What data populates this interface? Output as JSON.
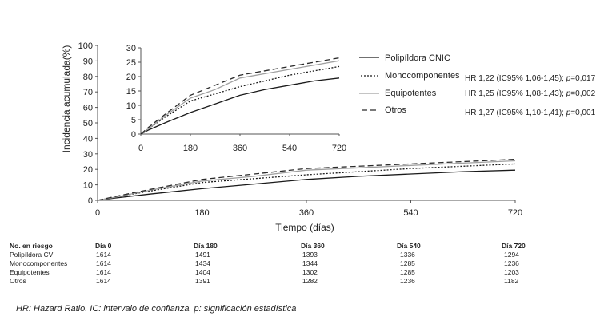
{
  "chart_data": [
    {
      "type": "line",
      "name": "main",
      "xlabel": "Tiempo (días)",
      "ylabel": "Incidencia acumulada(%)",
      "xlim": [
        0,
        720
      ],
      "ylim": [
        0,
        100
      ],
      "xticks": [
        0,
        180,
        360,
        540,
        720
      ],
      "yticks": [
        0,
        10,
        20,
        30,
        40,
        50,
        60,
        70,
        80,
        90,
        100
      ],
      "grid": false,
      "series": [
        {
          "name": "Polipíldora CNIC",
          "style": "solid",
          "color": "#1a1a1a",
          "x": [
            0,
            30,
            90,
            180,
            270,
            360,
            450,
            540,
            630,
            720
          ],
          "y": [
            0,
            1.5,
            4,
            7.5,
            10.5,
            13.5,
            15.5,
            17.0,
            18.5,
            19.5
          ]
        },
        {
          "name": "Monocomponentes",
          "style": "dotted",
          "color": "#1a1a1a",
          "x": [
            0,
            30,
            90,
            180,
            270,
            360,
            450,
            540,
            630,
            720
          ],
          "y": [
            0,
            2,
            6,
            11.5,
            14,
            16.5,
            18.5,
            20.5,
            22,
            23.5
          ]
        },
        {
          "name": "Equipotentes",
          "style": "solid",
          "color": "#a0a0a0",
          "x": [
            0,
            30,
            90,
            180,
            270,
            360,
            450,
            540,
            630,
            720
          ],
          "y": [
            0,
            2,
            6.5,
            12.5,
            15.5,
            19.5,
            21,
            22.5,
            24,
            25.5
          ]
        },
        {
          "name": "Otros",
          "style": "dashed",
          "color": "#2a2a2a",
          "x": [
            0,
            30,
            90,
            180,
            270,
            360,
            450,
            540,
            630,
            720
          ],
          "y": [
            0,
            2.5,
            7,
            13.5,
            17,
            20.5,
            22,
            23.5,
            25,
            26.5
          ]
        }
      ]
    },
    {
      "type": "line",
      "name": "inset",
      "xlim": [
        0,
        720
      ],
      "ylim": [
        0,
        30
      ],
      "xticks": [
        0,
        180,
        360,
        540,
        720
      ],
      "yticks": [
        0,
        5,
        10,
        15,
        20,
        25,
        30
      ],
      "grid": false,
      "legend": "right",
      "series": [
        {
          "name": "Polipíldora CNIC",
          "style": "solid",
          "color": "#1a1a1a",
          "x": [
            0,
            30,
            90,
            180,
            270,
            360,
            450,
            540,
            630,
            720
          ],
          "y": [
            0,
            1.5,
            4,
            7.5,
            10.5,
            13.5,
            15.5,
            17.0,
            18.5,
            19.5
          ]
        },
        {
          "name": "Monocomponentes",
          "style": "dotted",
          "color": "#1a1a1a",
          "x": [
            0,
            30,
            90,
            180,
            270,
            360,
            450,
            540,
            630,
            720
          ],
          "y": [
            0,
            2,
            6,
            11.5,
            14,
            16.5,
            18.5,
            20.5,
            22,
            23.5
          ]
        },
        {
          "name": "Equipotentes",
          "style": "solid",
          "color": "#a0a0a0",
          "x": [
            0,
            30,
            90,
            180,
            270,
            360,
            450,
            540,
            630,
            720
          ],
          "y": [
            0,
            2,
            6.5,
            12.5,
            15.5,
            19.5,
            21,
            22.5,
            24,
            25.5
          ]
        },
        {
          "name": "Otros",
          "style": "dashed",
          "color": "#2a2a2a",
          "x": [
            0,
            30,
            90,
            180,
            270,
            360,
            450,
            540,
            630,
            720
          ],
          "y": [
            0,
            2.5,
            7,
            13.5,
            17,
            20.5,
            22,
            23.5,
            25,
            26.5
          ]
        }
      ]
    }
  ],
  "annotations": {
    "hr": [
      {
        "pre": "HR 1,22 (IC95% 1,06-1,45); ",
        "p": "p",
        "post": "=0,017"
      },
      {
        "pre": "HR 1,25 (IC95% 1,08-1,43); ",
        "p": "p",
        "post": "=0,002"
      },
      {
        "pre": "HR 1,27 (IC95% 1,10-1,41); ",
        "p": "p",
        "post": "=0,001"
      }
    ]
  },
  "risk_table": {
    "headers": [
      "No. en riesgo",
      "Día 0",
      "Día 180",
      "Día 360",
      "Día 540",
      "Día 720"
    ],
    "rows": [
      {
        "label": "Polipíldora CV",
        "values": [
          "1614",
          "1491",
          "1393",
          "1336",
          "1294"
        ]
      },
      {
        "label": "Monocomponentes",
        "values": [
          "1614",
          "1434",
          "1344",
          "1285",
          "1236"
        ]
      },
      {
        "label": "Equipotentes",
        "values": [
          "1614",
          "1404",
          "1302",
          "1285",
          "1203"
        ]
      },
      {
        "label": "Otros",
        "values": [
          "1614",
          "1391",
          "1282",
          "1236",
          "1182"
        ]
      }
    ]
  },
  "footnote": "HR: Hazard Ratio. IC: intervalo de confianza. p: significación estadística"
}
